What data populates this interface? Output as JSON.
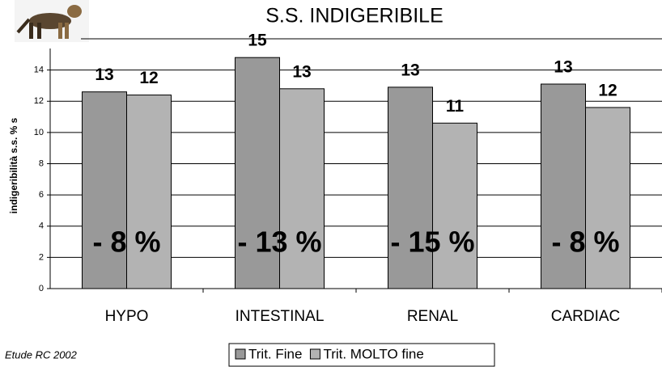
{
  "chart_data": {
    "type": "bar",
    "title": "S.S. INDIGERIBILE",
    "y_label": "indigeribilità s.s. % s",
    "categories": [
      "HYPO",
      "INTESTINAL",
      "RENAL",
      "CARDIAC"
    ],
    "series": [
      {
        "name": "Trit. Fine",
        "color": "#999999",
        "values": [
          12.6,
          14.8,
          12.9,
          13.1
        ],
        "value_labels": [
          "13",
          "15",
          "13",
          "13"
        ]
      },
      {
        "name": "Trit. MOLTO fine",
        "color": "#b3b3b3",
        "values": [
          12.4,
          12.8,
          10.6,
          11.6
        ],
        "value_labels": [
          "12",
          "13",
          "11",
          "12"
        ]
      }
    ],
    "annotations": [
      "- 8 %",
      "- 13 %",
      "- 15 %",
      "- 8 %"
    ],
    "footnote": "Etude RC 2002",
    "ylim": [
      0,
      16
    ],
    "yticks": [
      0,
      2,
      4,
      6,
      8,
      10,
      12,
      14
    ],
    "grid": true,
    "legend": "bottom"
  }
}
